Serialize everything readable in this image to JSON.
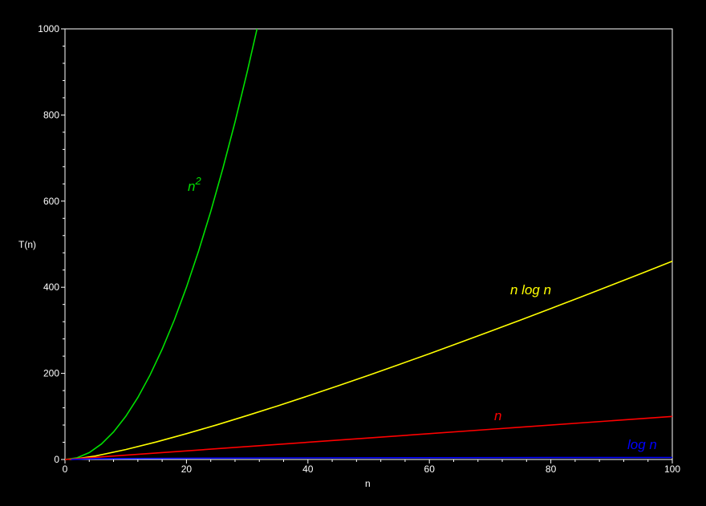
{
  "chart_data": {
    "type": "line",
    "title": "",
    "xlabel": "n",
    "ylabel": "T(n)",
    "xlim": [
      0,
      100
    ],
    "ylim": [
      0,
      1000
    ],
    "xticks": [
      0,
      20,
      40,
      60,
      80,
      100
    ],
    "yticks": [
      0,
      200,
      400,
      600,
      800,
      1000
    ],
    "grid": false,
    "background": "#000000",
    "axis_color": "#ffffff",
    "series": [
      {
        "name": "n2",
        "label_base": "n",
        "label_sup": "2",
        "color": "#00e000",
        "x": [
          0,
          2,
          4,
          6,
          8,
          10,
          12,
          14,
          16,
          18,
          20,
          22,
          24,
          26,
          28,
          30,
          31.62
        ],
        "y": [
          0,
          4,
          16,
          36,
          64,
          100,
          144,
          196,
          256,
          324,
          400,
          484,
          576,
          676,
          784,
          900,
          1000
        ]
      },
      {
        "name": "n log n",
        "label": "n log n",
        "color": "#ffff00",
        "x": [
          1,
          5,
          10,
          15,
          20,
          25,
          30,
          35,
          40,
          45,
          50,
          55,
          60,
          65,
          70,
          75,
          80,
          85,
          90,
          95,
          100
        ],
        "y": [
          0,
          8.05,
          23.03,
          40.62,
          59.91,
          80.47,
          102.04,
          124.44,
          147.56,
          171.3,
          195.6,
          220.4,
          245.66,
          271.33,
          297.4,
          323.81,
          350.56,
          377.63,
          404.98,
          432.61,
          460.52
        ]
      },
      {
        "name": "n",
        "label": "n",
        "color": "#ff0000",
        "x": [
          0,
          100
        ],
        "y": [
          0,
          100
        ]
      },
      {
        "name": "log n",
        "label": "log n",
        "color": "#0000ff",
        "x": [
          1,
          5,
          10,
          20,
          40,
          60,
          80,
          100
        ],
        "y": [
          0,
          1.61,
          2.3,
          3.0,
          3.69,
          4.09,
          4.38,
          4.61
        ]
      }
    ]
  }
}
